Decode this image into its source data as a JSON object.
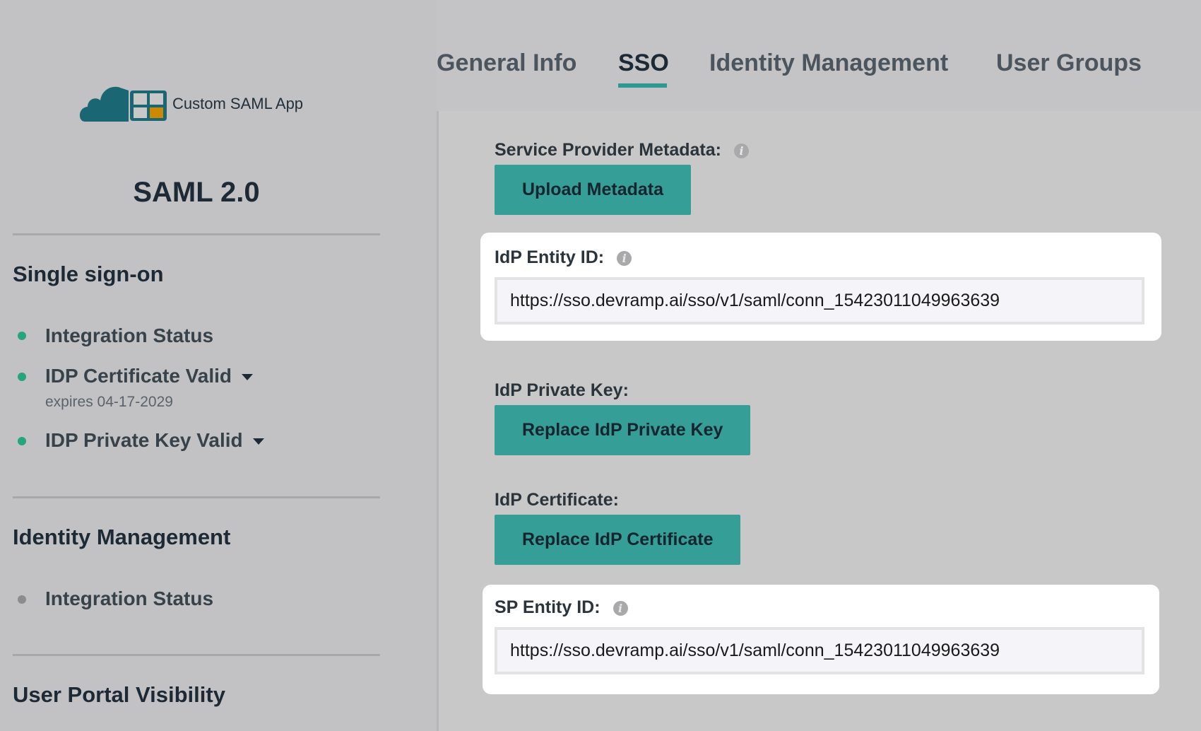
{
  "app": {
    "name": "Custom SAML App",
    "protocol": "SAML 2.0",
    "colors": {
      "cloud": "#1a6673",
      "accent": "#359e97",
      "tile_highlight": "#c98a00",
      "status_ok": "#24a57b",
      "status_inactive": "#8c8c8e"
    }
  },
  "tabs": [
    {
      "label": "General Info"
    },
    {
      "label": "SSO",
      "active": true
    },
    {
      "label": "Identity Management"
    },
    {
      "label": "User Groups"
    }
  ],
  "sidebar": {
    "sections": [
      {
        "title": "Single sign-on",
        "items": [
          {
            "label": "Integration Status",
            "status": "ok"
          },
          {
            "label": "IDP Certificate Valid",
            "status": "ok",
            "detail": "expires 04-17-2029",
            "dropdown": true
          },
          {
            "label": "IDP Private Key Valid",
            "status": "ok",
            "dropdown": true
          }
        ]
      },
      {
        "title": "Identity Management",
        "items": [
          {
            "label": "Integration Status",
            "status": "inactive"
          }
        ]
      },
      {
        "title": "User Portal Visibility",
        "items": []
      }
    ]
  },
  "sso": {
    "sp_metadata_label": "Service Provider Metadata:",
    "upload_button": "Upload Metadata",
    "idp_entity_label": "IdP Entity ID:",
    "idp_entity_value": "https://sso.devramp.ai/sso/v1/saml/conn_15423011049963639",
    "idp_private_key_label": "IdP Private Key:",
    "replace_key_button": "Replace IdP Private Key",
    "idp_cert_label": "IdP Certificate:",
    "replace_cert_button": "Replace IdP Certificate",
    "sp_entity_label": "SP Entity ID:",
    "sp_entity_value": "https://sso.devramp.ai/sso/v1/saml/conn_15423011049963639",
    "info_icon": "i"
  }
}
